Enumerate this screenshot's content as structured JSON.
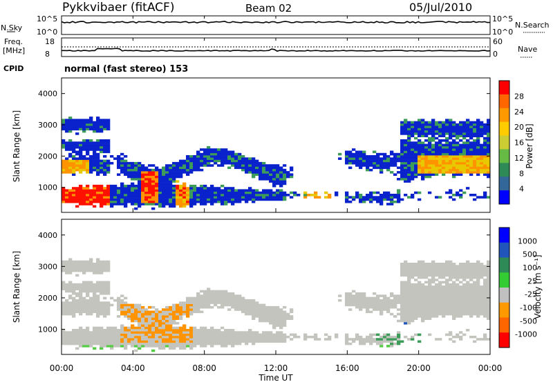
{
  "header": {
    "title": "Pykkvibaer (fitACF)",
    "beam": "Beam 02",
    "date": "05/Jul/2010"
  },
  "panels": {
    "nsky_label": "N.Sky",
    "nsky_ticks": [
      "10^5",
      "10^0"
    ],
    "nsearch_label": "N.Search",
    "nsearch_ticks": [
      "10^5",
      "10^0"
    ],
    "freq_label_1": "Freq.",
    "freq_label_2": "[MHz]",
    "freq_ticks": [
      "18",
      "8"
    ],
    "nave_label": "Nave",
    "nave_ticks": [
      "60",
      "0"
    ],
    "cpid_label": "CPID",
    "cpid_text": "normal (fast stereo) 153"
  },
  "chart_data": [
    {
      "type": "heatmap",
      "name": "power",
      "ylabel": "Slant Range [km]",
      "yticks": [
        "4000",
        "3000",
        "2000",
        "1000"
      ],
      "ylim": [
        200,
        4500
      ],
      "colorbar_label": "Power [dB]",
      "colorbar_ticks": [
        "28",
        "24",
        "20",
        "16",
        "12",
        "8",
        "4"
      ],
      "colorbar_colors": [
        "#ff0000",
        "#ff6600",
        "#ff9900",
        "#ffcc00",
        "#cccc33",
        "#66bb44",
        "#2e8b57",
        "#336699",
        "#0000ff"
      ]
    },
    {
      "type": "heatmap",
      "name": "velocity",
      "ylabel": "Slant Range [km]",
      "yticks": [
        "4000",
        "3000",
        "2000",
        "1000"
      ],
      "ylim": [
        200,
        4500
      ],
      "colorbar_label": "Velocity [m s⁻¹]",
      "colorbar_ticks": [
        "1000",
        "500",
        "100",
        "25",
        "-25",
        "-100",
        "-500",
        "-1000"
      ],
      "colorbar_colors": [
        "#0000ff",
        "#2255bb",
        "#2e8b57",
        "#33cc33",
        "#c0c0c0",
        "#ff9900",
        "#ff6600",
        "#ff0000"
      ]
    }
  ],
  "xaxis": {
    "label": "Time UT",
    "ticks": [
      "00:00",
      "04:00",
      "08:00",
      "12:00",
      "16:00",
      "20:00",
      "00:00"
    ]
  },
  "colors": {
    "blue": "#0a22cc",
    "gray": "#c4c4be",
    "green": "#3d9c5a",
    "orange": "#ff9400",
    "red": "#ff1000"
  }
}
